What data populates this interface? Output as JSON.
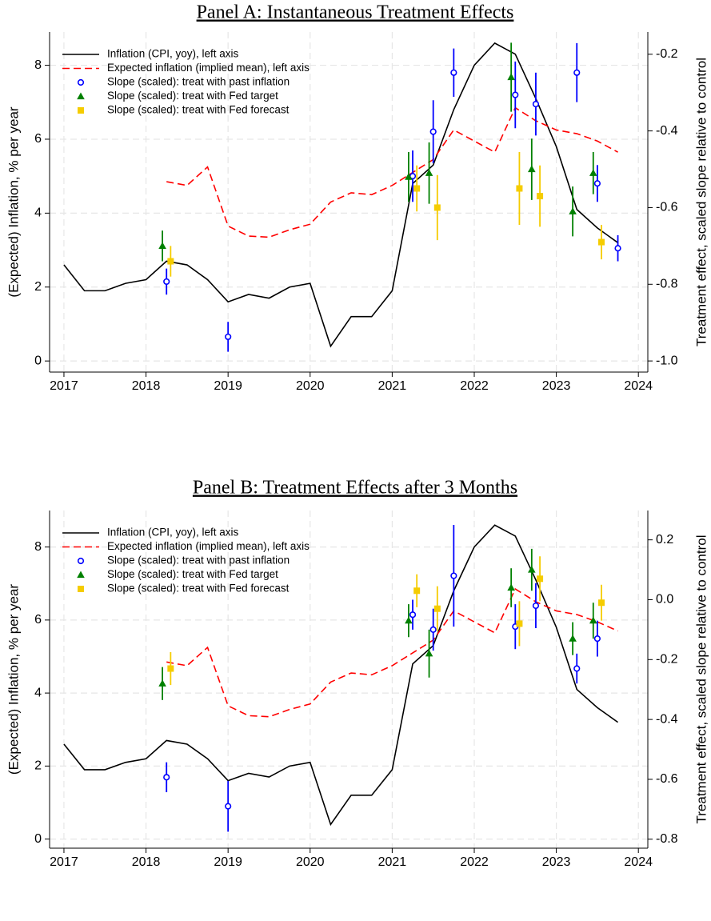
{
  "chart_data": [
    {
      "type": "line",
      "title": "Panel A: Instantaneous Treatment Effects",
      "ylabel": "(Expected) Inflation, % per year",
      "y2label": "Treatment effect, scaled slope relative to control",
      "x": [
        2017,
        2017.25,
        2017.5,
        2017.75,
        2018,
        2018.25,
        2018.5,
        2018.75,
        2019,
        2019.25,
        2019.5,
        2019.75,
        2020,
        2020.25,
        2020.5,
        2020.75,
        2021,
        2021.25,
        2021.5,
        2021.75,
        2022,
        2022.25,
        2022.5,
        2022.75,
        2023,
        2023.25,
        2023.5,
        2023.75
      ],
      "xlim": [
        2016.825,
        2024.115
      ],
      "xticks": [
        2017,
        2018,
        2019,
        2020,
        2021,
        2022,
        2023,
        2024
      ],
      "ylim": [
        -0.3,
        8.9
      ],
      "yticks": [
        0,
        2,
        4,
        6,
        8
      ],
      "y2lim": [
        -1.029,
        -0.142
      ],
      "y2ticks": [
        {
          "value": -1,
          "label": "-1.0"
        },
        -0.8,
        -0.6,
        -0.4,
        -0.2
      ],
      "grid": true,
      "legend": "upper-left",
      "series": [
        {
          "name": "Inflation (CPI, yoy), left axis",
          "type": "line",
          "color": "#000000",
          "dash": "solid",
          "values": [
            2.6,
            1.9,
            1.9,
            2.1,
            2.2,
            2.7,
            2.6,
            2.2,
            1.6,
            1.8,
            1.7,
            2.0,
            2.1,
            0.4,
            1.2,
            1.2,
            1.9,
            4.8,
            5.3,
            6.8,
            8.0,
            8.6,
            8.3,
            7.1,
            5.8,
            4.1,
            3.6,
            3.2
          ]
        },
        {
          "name": "Expected inflation (implied mean), left axis",
          "type": "line",
          "color": "#ff0000",
          "dash": "dashed",
          "values": [
            null,
            null,
            null,
            null,
            null,
            4.85,
            4.75,
            5.25,
            3.65,
            3.38,
            3.35,
            3.55,
            3.7,
            4.3,
            4.55,
            4.5,
            4.75,
            5.1,
            5.45,
            6.25,
            5.95,
            5.65,
            6.85,
            6.5,
            6.25,
            6.15,
            5.95,
            5.65
          ]
        },
        {
          "name": "Slope (scaled): treat with past inflation",
          "type": "scatter",
          "marker": "circle",
          "color": "#0000ff",
          "axis": "y2",
          "x": [
            2018.25,
            2019,
            2021.25,
            2021.5,
            2021.75,
            2022.5,
            2022.75,
            2023.25,
            2023.5,
            2023.75
          ],
          "values": [
            -0.793,
            -0.937,
            -0.518,
            -0.402,
            -0.248,
            -0.306,
            -0.33,
            -0.248,
            -0.537,
            -0.706
          ],
          "errors": [
            0.034,
            0.039,
            0.067,
            0.082,
            0.063,
            0.087,
            0.082,
            0.077,
            0.048,
            0.034
          ]
        },
        {
          "name": "Slope (scaled): treat with Fed target",
          "type": "scatter",
          "marker": "triangle",
          "color": "#008000",
          "axis": "y2",
          "x": [
            2018.2,
            2021.2,
            2021.45,
            2022.45,
            2022.7,
            2023.2,
            2023.45
          ],
          "values": [
            -0.7,
            -0.52,
            -0.51,
            -0.26,
            -0.5,
            -0.61,
            -0.51
          ],
          "errors": [
            0.04,
            0.065,
            0.08,
            0.09,
            0.08,
            0.065,
            0.055
          ]
        },
        {
          "name": "Slope (scaled): treat with Fed forecast",
          "type": "scatter",
          "marker": "square",
          "color": "#f5cc00",
          "axis": "y2",
          "x": [
            2018.3,
            2021.3,
            2021.55,
            2022.55,
            2022.8,
            2023.55
          ],
          "values": [
            -0.74,
            -0.55,
            -0.6,
            -0.55,
            -0.57,
            -0.69
          ],
          "errors": [
            0.04,
            0.06,
            0.085,
            0.095,
            0.08,
            0.045
          ]
        }
      ]
    },
    {
      "type": "line",
      "title": "Panel B: Treatment Effects after 3 Months",
      "ylabel": "(Expected) Inflation, % per year",
      "y2label": "Treatment effect, scaled slope relative to control",
      "x": [
        2017,
        2017.25,
        2017.5,
        2017.75,
        2018,
        2018.25,
        2018.5,
        2018.75,
        2019,
        2019.25,
        2019.5,
        2019.75,
        2020,
        2020.25,
        2020.5,
        2020.75,
        2021,
        2021.25,
        2021.5,
        2021.75,
        2022,
        2022.25,
        2022.5,
        2022.75,
        2023,
        2023.25,
        2023.5,
        2023.75
      ],
      "xlim": [
        2016.825,
        2024.115
      ],
      "xticks": [
        2017,
        2018,
        2019,
        2020,
        2021,
        2022,
        2023,
        2024
      ],
      "ylim": [
        -0.25,
        9.0
      ],
      "yticks": [
        0,
        2,
        4,
        6,
        8
      ],
      "y2lim": [
        -0.83,
        0.298
      ],
      "y2ticks": [
        -0.8,
        -0.6,
        -0.4,
        -0.2,
        {
          "value": 0,
          "label": "0.0"
        },
        0.2
      ],
      "grid": true,
      "legend": "upper-left",
      "series": [
        {
          "name": "Inflation (CPI, yoy), left axis",
          "type": "line",
          "color": "#000000",
          "dash": "solid",
          "values": [
            2.6,
            1.9,
            1.9,
            2.1,
            2.2,
            2.7,
            2.6,
            2.2,
            1.6,
            1.8,
            1.7,
            2.0,
            2.1,
            0.4,
            1.2,
            1.2,
            1.9,
            4.8,
            5.3,
            6.8,
            8.0,
            8.6,
            8.3,
            7.1,
            5.8,
            4.1,
            3.6,
            3.2
          ]
        },
        {
          "name": "Expected inflation (implied mean), left axis",
          "type": "line",
          "color": "#ff0000",
          "dash": "dashed",
          "values": [
            null,
            null,
            null,
            null,
            null,
            4.85,
            4.75,
            5.25,
            3.65,
            3.38,
            3.35,
            3.55,
            3.7,
            4.3,
            4.55,
            4.5,
            4.75,
            5.1,
            5.45,
            6.25,
            5.95,
            5.65,
            6.85,
            6.5,
            6.25,
            6.15,
            5.95,
            5.7
          ]
        },
        {
          "name": "Slope (scaled): treat with past inflation",
          "type": "scatter",
          "marker": "circle",
          "color": "#0000ff",
          "axis": "y2",
          "x": [
            2018.25,
            2019,
            2021.25,
            2021.5,
            2021.75,
            2022.5,
            2022.75,
            2023.25,
            2023.5
          ],
          "values": [
            -0.593,
            -0.69,
            -0.05,
            -0.1,
            0.08,
            -0.09,
            -0.02,
            -0.23,
            -0.13
          ],
          "errors": [
            0.05,
            0.085,
            0.05,
            0.07,
            0.17,
            0.075,
            0.075,
            0.05,
            0.06
          ]
        },
        {
          "name": "Slope (scaled): treat with Fed target",
          "type": "scatter",
          "marker": "triangle",
          "color": "#008000",
          "axis": "y2",
          "x": [
            2018.2,
            2021.2,
            2021.45,
            2022.45,
            2022.7,
            2023.2,
            2023.45
          ],
          "values": [
            -0.28,
            -0.07,
            -0.18,
            0.04,
            0.1,
            -0.13,
            -0.07
          ],
          "errors": [
            0.055,
            0.055,
            0.08,
            0.065,
            0.07,
            0.055,
            0.06
          ]
        },
        {
          "name": "Slope (scaled): treat with Fed forecast",
          "type": "scatter",
          "marker": "square",
          "color": "#f5cc00",
          "axis": "y2",
          "x": [
            2018.3,
            2021.3,
            2021.55,
            2022.55,
            2022.8,
            2023.55
          ],
          "values": [
            -0.23,
            0.03,
            -0.03,
            -0.08,
            0.07,
            -0.01
          ],
          "errors": [
            0.055,
            0.055,
            0.075,
            0.075,
            0.075,
            0.06
          ]
        }
      ]
    }
  ]
}
